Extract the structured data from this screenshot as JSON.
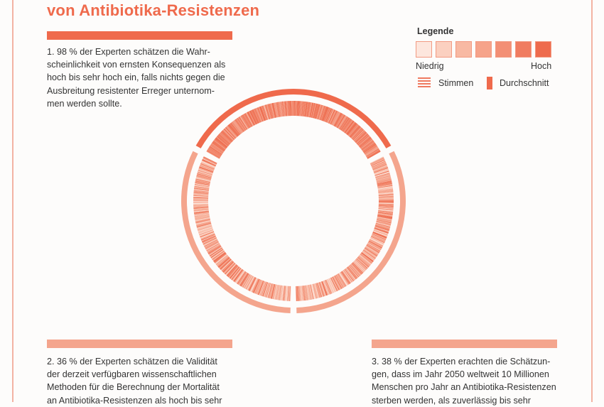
{
  "title": "von Antibiotika-Resistenzen",
  "legend": {
    "title": "Legende",
    "low": "Niedrig",
    "high": "Hoch",
    "votes": "Stimmen",
    "average": "Durchschnitt",
    "swatch_colors": [
      "#fde6dd",
      "#fbd0c0",
      "#f8b9a3",
      "#f6a38a",
      "#f38f75",
      "#f07c60",
      "#ee6b4d"
    ]
  },
  "colors": {
    "accent": "#ef6a4c",
    "light_accent": "#f4a58d"
  },
  "statements": [
    {
      "lines": [
        "1. 98 % der Experten schätzen die Wahr-",
        "scheinlichkeit von ernsten Konsequenzen als",
        "hoch bis sehr hoch ein, falls nichts gegen die",
        "Ausbreitung resistenter Erreger unternom-",
        "men werden sollte."
      ]
    },
    {
      "lines": [
        "2. 36 % der Experten schätzen die Validität",
        "der derzeit verfügbaren wissenschaftlichen",
        "Methoden für die Berechnung der Mortalität",
        "an Antibiotika-Resistenzen als hoch bis sehr"
      ]
    },
    {
      "lines": [
        "3. 38 % der Experten erachten die Schätzun-",
        "gen, dass im Jahr 2050 weltweit 10 Millionen",
        "Menschen pro Jahr an Antibiotika-Resistenzen",
        "sterben werden, als zuverlässig bis sehr"
      ]
    }
  ],
  "ring": {
    "sections": [
      {
        "label": "1",
        "percent_high": 98,
        "start_deg": -62,
        "end_deg": 62
      },
      {
        "label": "3",
        "percent_high": 38,
        "start_deg": 62,
        "end_deg": 180
      },
      {
        "label": "2",
        "percent_high": 36,
        "start_deg": 180,
        "end_deg": 298
      }
    ]
  }
}
